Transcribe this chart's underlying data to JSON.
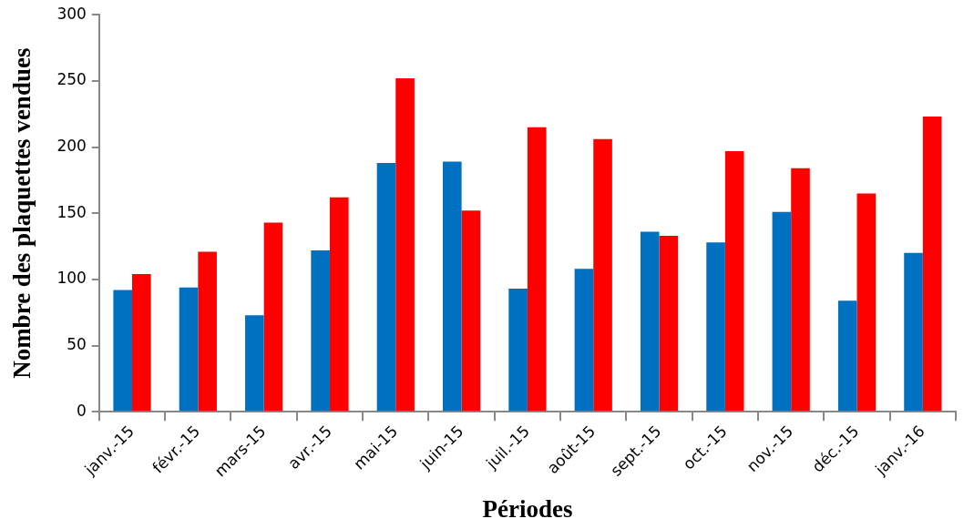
{
  "chart_data": {
    "type": "bar",
    "xlabel": "Périodes",
    "ylabel": "Nombre des plaquettes vendues",
    "categories": [
      "janv.-15",
      "févr.-15",
      "mars-15",
      "avr.-15",
      "mai-15",
      "juin-15",
      "juil.-15",
      "août-15",
      "sept.-15",
      "oct.-15",
      "nov.-15",
      "déc.-15",
      "janv.-16"
    ],
    "series": [
      {
        "color": "#0070c0",
        "values": [
          92,
          94,
          73,
          122,
          188,
          189,
          93,
          108,
          136,
          128,
          151,
          84,
          120
        ]
      },
      {
        "color": "#ff0000",
        "values": [
          104,
          121,
          143,
          162,
          252,
          152,
          215,
          206,
          133,
          197,
          184,
          165,
          223
        ]
      }
    ],
    "ylim": [
      0,
      300
    ],
    "yticks": [
      0,
      50,
      100,
      150,
      200,
      250,
      300
    ],
    "grid": false,
    "legend": false
  }
}
